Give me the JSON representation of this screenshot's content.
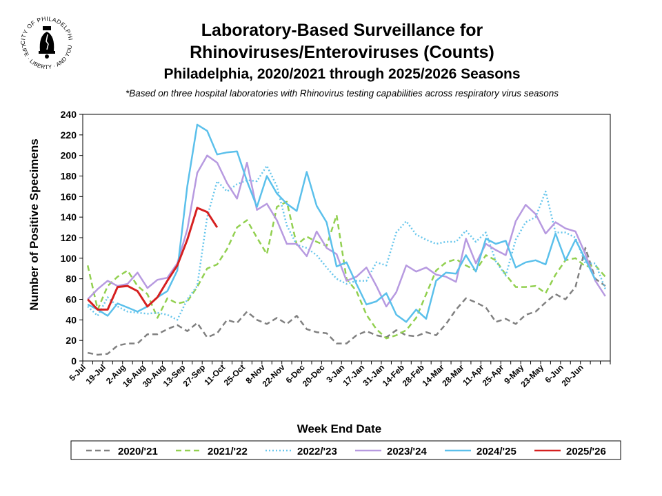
{
  "logo": {
    "text_top": "CITY OF PHILADELPHIA",
    "text_bottom": "LIFE · LIBERTY · AND YOU"
  },
  "header": {
    "title_line1": "Laboratory-Based Surveillance for",
    "title_line2": "Rhinoviruses/Enteroviruses (Counts)",
    "subtitle": "Philadelphia, 2020/2021 through 2025/2026 Seasons",
    "note": "*Based on three hospital laboratories with Rhinovirus testing capabilities across respiratory virus seasons"
  },
  "chart_data": {
    "type": "line",
    "xlabel": "Week End Date",
    "ylabel": "Number of Positive Specimens",
    "ylim": [
      0,
      240
    ],
    "yticks": [
      0,
      20,
      40,
      60,
      80,
      100,
      120,
      140,
      160,
      180,
      200,
      220,
      240
    ],
    "x_tick_labels": [
      "5-Jul",
      "19-Jul",
      "2-Aug",
      "16-Aug",
      "30-Aug",
      "13-Sep",
      "27-Sep",
      "11-Oct",
      "25-Oct",
      "8-Nov",
      "22-Nov",
      "6-Dec",
      "20-Dec",
      "3-Jan",
      "17-Jan",
      "31-Jan",
      "14-Feb",
      "28-Feb",
      "14-Mar",
      "28-Mar",
      "11-Apr",
      "25-Apr",
      "9-May",
      "23-May",
      "6-Jun",
      "20-Jun"
    ],
    "weeks": 53,
    "grid": false,
    "legend_position": "bottom",
    "series": [
      {
        "name": "2020/'21",
        "color": "#808080",
        "style": "dashed",
        "values": [
          8,
          6,
          7,
          15,
          17,
          17,
          26,
          26,
          31,
          35,
          29,
          37,
          23,
          27,
          40,
          37,
          48,
          40,
          36,
          42,
          36,
          44,
          31,
          28,
          27,
          17,
          17,
          25,
          29,
          25,
          23,
          30,
          25,
          24,
          28,
          25,
          36,
          50,
          61,
          57,
          52,
          38,
          41,
          36,
          45,
          48,
          57,
          65,
          60,
          72,
          110,
          80,
          73
        ]
      },
      {
        "name": "2021/'22",
        "color": "#92D050",
        "style": "dashed",
        "values": [
          93,
          50,
          73,
          82,
          88,
          73,
          65,
          42,
          61,
          56,
          58,
          72,
          90,
          94,
          109,
          130,
          137,
          120,
          104,
          150,
          155,
          113,
          121,
          116,
          112,
          142,
          80,
          68,
          45,
          31,
          22,
          25,
          30,
          42,
          65,
          88,
          96,
          99,
          93,
          88,
          103,
          98,
          84,
          72,
          72,
          73,
          66,
          84,
          98,
          100,
          92,
          93,
          82
        ]
      },
      {
        "name": "2022/'23",
        "color": "#67C6EC",
        "style": "dotted",
        "values": [
          53,
          44,
          62,
          53,
          48,
          47,
          46,
          47,
          45,
          40,
          60,
          73,
          140,
          175,
          165,
          172,
          176,
          175,
          190,
          170,
          132,
          113,
          110,
          103,
          91,
          80,
          75,
          78,
          78,
          96,
          93,
          125,
          136,
          123,
          118,
          114,
          116,
          116,
          127,
          116,
          125,
          97,
          83,
          118,
          135,
          140,
          165,
          125,
          125,
          120,
          95,
          95,
          70
        ]
      },
      {
        "name": "2023/'24",
        "color": "#B79AE0",
        "style": "solid",
        "values": [
          60,
          70,
          78,
          73,
          75,
          86,
          71,
          79,
          81,
          95,
          128,
          183,
          200,
          193,
          173,
          158,
          193,
          147,
          153,
          137,
          114,
          114,
          102,
          126,
          110,
          104,
          78,
          82,
          91,
          73,
          53,
          67,
          93,
          87,
          91,
          84,
          82,
          77,
          119,
          95,
          114,
          108,
          103,
          136,
          152,
          143,
          124,
          135,
          129,
          126,
          104,
          78,
          63
        ]
      },
      {
        "name": "2024/'25",
        "color": "#5BC0EB",
        "style": "solid",
        "values": [
          55,
          50,
          44,
          56,
          52,
          48,
          53,
          62,
          68,
          88,
          170,
          230,
          224,
          201,
          203,
          204,
          175,
          150,
          180,
          163,
          153,
          146,
          184,
          151,
          135,
          92,
          96,
          75,
          55,
          58,
          66,
          45,
          38,
          50,
          41,
          78,
          86,
          85,
          103,
          87,
          119,
          114,
          117,
          91,
          96,
          98,
          94,
          124,
          98,
          118,
          99,
          79,
          null
        ]
      },
      {
        "name": "2025/'26",
        "color": "#D62020",
        "style": "solid",
        "values": [
          60,
          50,
          50,
          72,
          73,
          68,
          53,
          62,
          78,
          93,
          118,
          149,
          145,
          130
        ]
      }
    ]
  }
}
